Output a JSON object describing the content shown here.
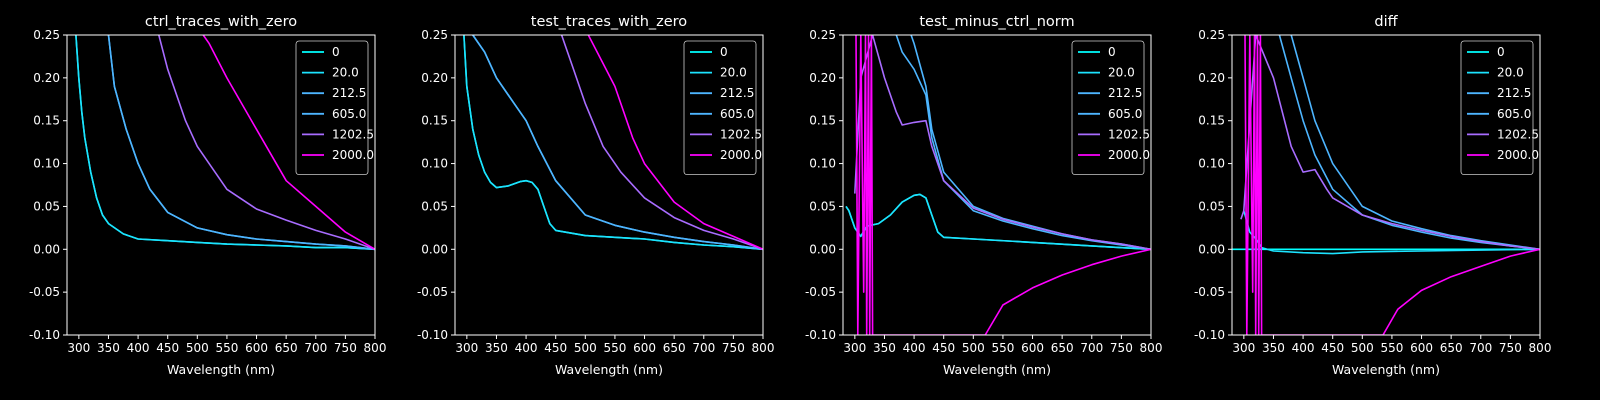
{
  "chart_data": [
    {
      "type": "line",
      "title": "ctrl_traces_with_zero",
      "xlabel": "Wavelength (nm)",
      "ylabel": "",
      "xlim": [
        280,
        800
      ],
      "ylim": [
        -0.1,
        0.25
      ],
      "xticks": [
        300,
        350,
        400,
        450,
        500,
        550,
        600,
        650,
        700,
        750,
        800
      ],
      "yticks": [
        -0.1,
        -0.05,
        0.0,
        0.05,
        0.1,
        0.15,
        0.2,
        0.25
      ],
      "legend_position": "top-right",
      "series": [
        {
          "name": "0",
          "color": "#00ffff",
          "x": [
            295,
            300,
            305,
            310,
            320,
            330,
            340,
            350,
            375,
            400,
            450,
            500,
            550,
            600,
            650,
            700,
            750,
            800
          ],
          "y": [
            0.25,
            0.2,
            0.16,
            0.13,
            0.09,
            0.06,
            0.04,
            0.03,
            0.018,
            0.012,
            0.01,
            0.008,
            0.006,
            0.005,
            0.004,
            0.002,
            0.002,
            0.0
          ]
        },
        {
          "name": "20.0",
          "color": "#1ce3ff",
          "x": [
            295,
            300,
            305,
            310,
            320,
            330,
            340,
            350,
            375,
            400,
            450,
            500,
            550,
            600,
            650,
            700,
            750,
            800
          ],
          "y": [
            0.25,
            0.2,
            0.16,
            0.13,
            0.09,
            0.06,
            0.04,
            0.03,
            0.018,
            0.012,
            0.01,
            0.008,
            0.006,
            0.005,
            0.004,
            0.002,
            0.002,
            0.0
          ]
        },
        {
          "name": "212.5",
          "color": "#4db5ff",
          "x": [
            350,
            360,
            380,
            400,
            420,
            450,
            500,
            550,
            600,
            650,
            700,
            750,
            800
          ],
          "y": [
            0.25,
            0.19,
            0.14,
            0.1,
            0.07,
            0.043,
            0.025,
            0.017,
            0.012,
            0.009,
            0.006,
            0.004,
            0.0
          ]
        },
        {
          "name": "605.0",
          "color": "#4db5ff",
          "x": [
            350,
            360,
            380,
            400,
            420,
            450,
            500,
            550,
            600,
            650,
            700,
            750,
            800
          ],
          "y": [
            0.25,
            0.19,
            0.14,
            0.1,
            0.07,
            0.043,
            0.025,
            0.017,
            0.012,
            0.009,
            0.006,
            0.004,
            0.0
          ]
        },
        {
          "name": "1202.5",
          "color": "#a86cff",
          "x": [
            435,
            450,
            480,
            500,
            550,
            600,
            650,
            700,
            750,
            800
          ],
          "y": [
            0.25,
            0.21,
            0.15,
            0.12,
            0.07,
            0.047,
            0.034,
            0.022,
            0.012,
            0.0
          ]
        },
        {
          "name": "2000.0",
          "color": "#ff00ff",
          "x": [
            510,
            520,
            550,
            600,
            650,
            700,
            750,
            800
          ],
          "y": [
            0.25,
            0.24,
            0.2,
            0.14,
            0.08,
            0.05,
            0.02,
            0.0
          ]
        }
      ]
    },
    {
      "type": "line",
      "title": "test_traces_with_zero",
      "xlabel": "Wavelength (nm)",
      "ylabel": "",
      "xlim": [
        280,
        800
      ],
      "ylim": [
        -0.1,
        0.25
      ],
      "xticks": [
        300,
        350,
        400,
        450,
        500,
        550,
        600,
        650,
        700,
        750,
        800
      ],
      "yticks": [
        -0.1,
        -0.05,
        0.0,
        0.05,
        0.1,
        0.15,
        0.2,
        0.25
      ],
      "legend_position": "top-right",
      "series": [
        {
          "name": "0",
          "color": "#00ffff",
          "x": [
            295,
            300,
            310,
            320,
            330,
            340,
            350,
            370,
            390,
            400,
            410,
            420,
            430,
            440,
            450,
            500,
            550,
            600,
            650,
            700,
            750,
            800
          ],
          "y": [
            0.25,
            0.19,
            0.14,
            0.11,
            0.09,
            0.078,
            0.072,
            0.074,
            0.079,
            0.08,
            0.078,
            0.07,
            0.05,
            0.03,
            0.022,
            0.016,
            0.014,
            0.012,
            0.008,
            0.005,
            0.003,
            0.0
          ]
        },
        {
          "name": "20.0",
          "color": "#1ce3ff",
          "x": [
            295,
            300,
            310,
            320,
            330,
            340,
            350,
            370,
            390,
            400,
            410,
            420,
            430,
            440,
            450,
            500,
            550,
            600,
            650,
            700,
            750,
            800
          ],
          "y": [
            0.25,
            0.19,
            0.14,
            0.11,
            0.09,
            0.078,
            0.072,
            0.074,
            0.079,
            0.08,
            0.078,
            0.07,
            0.05,
            0.03,
            0.022,
            0.016,
            0.014,
            0.012,
            0.008,
            0.005,
            0.003,
            0.0
          ]
        },
        {
          "name": "212.5",
          "color": "#4db5ff",
          "x": [
            310,
            330,
            350,
            380,
            400,
            420,
            450,
            500,
            550,
            600,
            650,
            700,
            750,
            800
          ],
          "y": [
            0.25,
            0.23,
            0.2,
            0.17,
            0.15,
            0.12,
            0.08,
            0.04,
            0.028,
            0.02,
            0.014,
            0.009,
            0.005,
            0.0
          ]
        },
        {
          "name": "605.0",
          "color": "#4db5ff",
          "x": [
            310,
            330,
            350,
            380,
            400,
            420,
            450,
            500,
            550,
            600,
            650,
            700,
            750,
            800
          ],
          "y": [
            0.25,
            0.23,
            0.2,
            0.17,
            0.15,
            0.12,
            0.08,
            0.04,
            0.028,
            0.02,
            0.014,
            0.009,
            0.005,
            0.0
          ]
        },
        {
          "name": "1202.5",
          "color": "#a86cff",
          "x": [
            460,
            480,
            500,
            530,
            560,
            600,
            650,
            700,
            750,
            800
          ],
          "y": [
            0.25,
            0.21,
            0.17,
            0.12,
            0.09,
            0.06,
            0.037,
            0.022,
            0.012,
            0.0
          ]
        },
        {
          "name": "2000.0",
          "color": "#ff00ff",
          "x": [
            505,
            520,
            550,
            580,
            600,
            650,
            700,
            750,
            800
          ],
          "y": [
            0.25,
            0.23,
            0.19,
            0.13,
            0.1,
            0.055,
            0.03,
            0.015,
            0.0
          ]
        }
      ]
    },
    {
      "type": "line",
      "title": "test_minus_ctrl_norm",
      "xlabel": "Wavelength (nm)",
      "ylabel": "",
      "xlim": [
        280,
        800
      ],
      "ylim": [
        -0.1,
        0.25
      ],
      "xticks": [
        300,
        350,
        400,
        450,
        500,
        550,
        600,
        650,
        700,
        750,
        800
      ],
      "yticks": [
        -0.1,
        -0.05,
        0.0,
        0.05,
        0.1,
        0.15,
        0.2,
        0.25
      ],
      "legend_position": "top-right",
      "series": [
        {
          "name": "0",
          "color": "#00ffff",
          "x": [
            285,
            290,
            300,
            310,
            320,
            340,
            360,
            380,
            400,
            410,
            420,
            430,
            440,
            450,
            500,
            600,
            700,
            800
          ],
          "y": [
            0.05,
            0.045,
            0.025,
            0.015,
            0.027,
            0.03,
            0.04,
            0.055,
            0.063,
            0.064,
            0.06,
            0.04,
            0.02,
            0.014,
            0.012,
            0.008,
            0.004,
            0.0
          ]
        },
        {
          "name": "20.0",
          "color": "#1ce3ff",
          "x": [
            285,
            290,
            300,
            310,
            320,
            340,
            360,
            380,
            400,
            410,
            420,
            430,
            440,
            450,
            500,
            600,
            700,
            800
          ],
          "y": [
            0.05,
            0.045,
            0.025,
            0.015,
            0.027,
            0.03,
            0.04,
            0.055,
            0.063,
            0.064,
            0.06,
            0.04,
            0.02,
            0.014,
            0.012,
            0.008,
            0.004,
            0.0
          ]
        },
        {
          "name": "212.5",
          "color": "#4db5ff",
          "x": [
            370,
            380,
            400,
            420,
            430,
            450,
            500,
            550,
            600,
            650,
            700,
            750,
            800
          ],
          "y": [
            0.25,
            0.23,
            0.21,
            0.18,
            0.13,
            0.08,
            0.045,
            0.033,
            0.024,
            0.016,
            0.01,
            0.005,
            0.0
          ]
        },
        {
          "name": "605.0",
          "color": "#4db5ff",
          "x": [
            395,
            400,
            420,
            430,
            450,
            500,
            550,
            600,
            650,
            700,
            750,
            800
          ],
          "y": [
            0.25,
            0.24,
            0.19,
            0.14,
            0.09,
            0.05,
            0.036,
            0.027,
            0.018,
            0.011,
            0.006,
            0.0
          ]
        },
        {
          "name": "1202.5",
          "color": "#a86cff",
          "x": [
            300,
            310,
            330,
            350,
            370,
            380,
            400,
            420,
            430,
            450,
            500,
            550,
            600,
            650,
            700,
            750,
            800
          ],
          "y": [
            0.065,
            0.2,
            0.25,
            0.2,
            0.16,
            0.145,
            0.148,
            0.15,
            0.12,
            0.08,
            0.048,
            0.035,
            0.026,
            0.018,
            0.011,
            0.006,
            0.0
          ]
        },
        {
          "name": "2000.0",
          "color": "#ff00ff",
          "x": [
            302,
            305,
            310,
            315,
            318,
            320,
            323,
            325,
            328,
            330,
            520,
            550,
            600,
            650,
            700,
            750,
            800
          ],
          "y": [
            0.25,
            -0.1,
            0.25,
            -0.05,
            0.25,
            -0.1,
            0.25,
            -0.1,
            0.25,
            -0.1,
            -0.1,
            -0.065,
            -0.045,
            -0.03,
            -0.018,
            -0.008,
            0.0
          ]
        }
      ]
    },
    {
      "type": "line",
      "title": "diff",
      "xlabel": "Wavelength (nm)",
      "ylabel": "",
      "xlim": [
        280,
        800
      ],
      "ylim": [
        -0.1,
        0.25
      ],
      "xticks": [
        300,
        350,
        400,
        450,
        500,
        550,
        600,
        650,
        700,
        750,
        800
      ],
      "yticks": [
        -0.1,
        -0.05,
        0.0,
        0.05,
        0.1,
        0.15,
        0.2,
        0.25
      ],
      "legend_position": "top-right",
      "series": [
        {
          "name": "0",
          "color": "#00ffff",
          "x": [
            280,
            800
          ],
          "y": [
            0.0,
            0.0
          ]
        },
        {
          "name": "20.0",
          "color": "#1ce3ff",
          "x": [
            300,
            310,
            320,
            330,
            350,
            400,
            450,
            500,
            600,
            700,
            800
          ],
          "y": [
            0.045,
            0.02,
            0.012,
            0.002,
            -0.002,
            -0.004,
            -0.005,
            -0.003,
            -0.002,
            -0.001,
            0.0
          ]
        },
        {
          "name": "212.5",
          "color": "#4db5ff",
          "x": [
            360,
            380,
            400,
            420,
            450,
            500,
            550,
            600,
            650,
            700,
            750,
            800
          ],
          "y": [
            0.25,
            0.2,
            0.15,
            0.11,
            0.07,
            0.04,
            0.028,
            0.02,
            0.013,
            0.008,
            0.004,
            0.0
          ]
        },
        {
          "name": "605.0",
          "color": "#4db5ff",
          "x": [
            380,
            400,
            420,
            450,
            500,
            550,
            600,
            650,
            700,
            750,
            800
          ],
          "y": [
            0.25,
            0.2,
            0.15,
            0.1,
            0.05,
            0.033,
            0.024,
            0.016,
            0.01,
            0.005,
            0.0
          ]
        },
        {
          "name": "1202.5",
          "color": "#a86cff",
          "x": [
            295,
            300,
            320,
            350,
            380,
            400,
            420,
            440,
            450,
            500,
            550,
            600,
            650,
            700,
            750,
            800
          ],
          "y": [
            0.035,
            0.045,
            0.25,
            0.2,
            0.12,
            0.09,
            0.093,
            0.07,
            0.06,
            0.04,
            0.03,
            0.022,
            0.015,
            0.009,
            0.004,
            0.0
          ]
        },
        {
          "name": "2000.0",
          "color": "#ff00ff",
          "x": [
            302,
            305,
            310,
            315,
            318,
            320,
            323,
            325,
            328,
            330,
            535,
            560,
            600,
            650,
            700,
            750,
            800
          ],
          "y": [
            0.25,
            -0.1,
            0.25,
            -0.05,
            0.25,
            -0.1,
            0.25,
            -0.1,
            0.25,
            -0.1,
            -0.1,
            -0.07,
            -0.048,
            -0.032,
            -0.02,
            -0.008,
            0.0
          ]
        }
      ]
    }
  ]
}
